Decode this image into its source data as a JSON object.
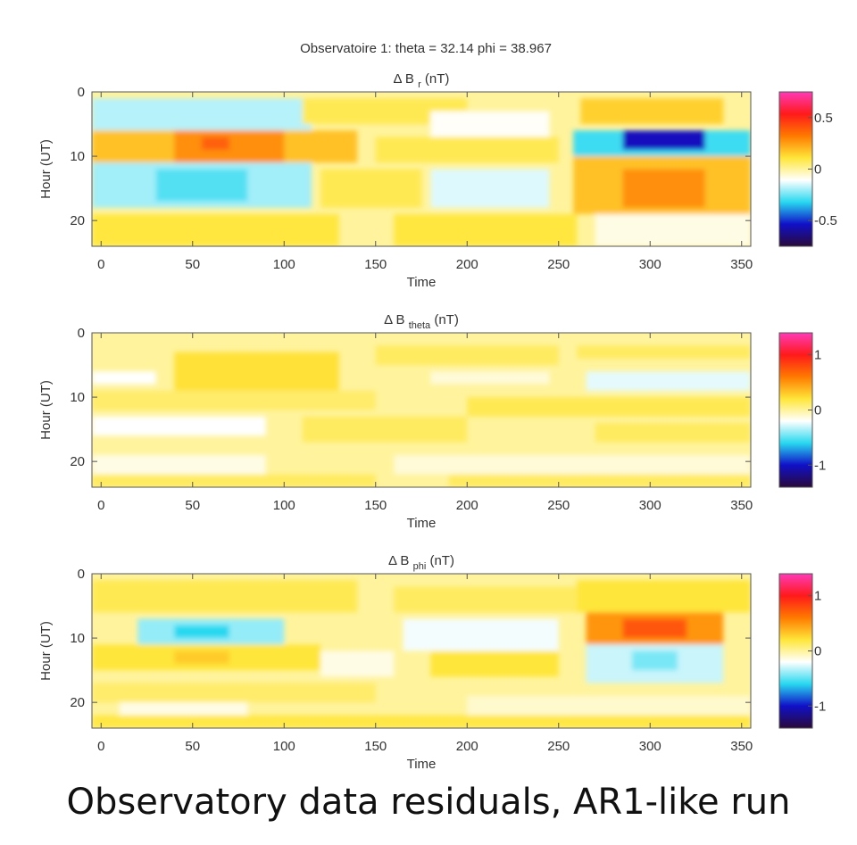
{
  "figure": {
    "suptitle": "Observatoire 1: theta = 32.14 phi = 38.967",
    "caption": "Observatory data residuals, AR1-like run"
  },
  "colormap": {
    "name": "blue-white-red diverging",
    "stops": [
      "#2a0a3a",
      "#1010c8",
      "#28d8f0",
      "#ffffff",
      "#ffe63a",
      "#ff7a00",
      "#ff1a1a",
      "#ff3ab8"
    ]
  },
  "chart_data": [
    {
      "type": "heatmap",
      "title_main": "Δ B",
      "title_sub": "r",
      "title_unit": "(nT)",
      "xlabel": "Time",
      "ylabel": "Hour (UT)",
      "xlim": [
        -5,
        355
      ],
      "ylim": [
        0,
        24
      ],
      "y_reversed": true,
      "xticks": [
        0,
        50,
        100,
        150,
        200,
        250,
        300,
        350
      ],
      "yticks": [
        0,
        10,
        20
      ],
      "clim": [
        -0.75,
        0.75
      ],
      "cticks": [
        0.5,
        0,
        -0.5
      ],
      "cticklabels": [
        "0.5",
        "0",
        "-0.5"
      ],
      "blocks": [
        {
          "x0": -5,
          "x1": 115,
          "y0": 1,
          "y1": 6,
          "v": -0.18
        },
        {
          "x0": 110,
          "x1": 200,
          "y0": 1,
          "y1": 5,
          "v": 0.08
        },
        {
          "x0": 180,
          "x1": 245,
          "y0": 3,
          "y1": 7,
          "v": -0.1
        },
        {
          "x0": 262,
          "x1": 340,
          "y0": 1,
          "y1": 5,
          "v": 0.15
        },
        {
          "x0": -5,
          "x1": 140,
          "y0": 6,
          "y1": 11,
          "v": 0.18
        },
        {
          "x0": 40,
          "x1": 100,
          "y0": 6,
          "y1": 11,
          "v": 0.28
        },
        {
          "x0": 55,
          "x1": 70,
          "y0": 7,
          "y1": 9,
          "v": 0.38
        },
        {
          "x0": 150,
          "x1": 250,
          "y0": 7,
          "y1": 11,
          "v": 0.08
        },
        {
          "x0": 258,
          "x1": 355,
          "y0": 6,
          "y1": 10,
          "v": -0.3
        },
        {
          "x0": 285,
          "x1": 330,
          "y0": 6,
          "y1": 9,
          "v": -0.55
        },
        {
          "x0": -5,
          "x1": 115,
          "y0": 11,
          "y1": 18,
          "v": -0.2
        },
        {
          "x0": 30,
          "x1": 80,
          "y0": 12,
          "y1": 17,
          "v": -0.28
        },
        {
          "x0": 120,
          "x1": 175,
          "y0": 12,
          "y1": 18,
          "v": 0.08
        },
        {
          "x0": 180,
          "x1": 245,
          "y0": 12,
          "y1": 18,
          "v": -0.14
        },
        {
          "x0": 258,
          "x1": 355,
          "y0": 10,
          "y1": 19,
          "v": 0.18
        },
        {
          "x0": 285,
          "x1": 330,
          "y0": 12,
          "y1": 18,
          "v": 0.28
        },
        {
          "x0": -5,
          "x1": 130,
          "y0": 19,
          "y1": 24,
          "v": 0.1
        },
        {
          "x0": 160,
          "x1": 260,
          "y0": 19,
          "y1": 24,
          "v": 0.1
        },
        {
          "x0": 270,
          "x1": 355,
          "y0": 19,
          "y1": 24,
          "v": -0.08
        }
      ]
    },
    {
      "type": "heatmap",
      "title_main": "Δ B",
      "title_sub": "theta",
      "title_unit": "(nT)",
      "xlabel": "Time",
      "ylabel": "Hour (UT)",
      "xlim": [
        -5,
        355
      ],
      "ylim": [
        0,
        24
      ],
      "y_reversed": true,
      "xticks": [
        0,
        50,
        100,
        150,
        200,
        250,
        300,
        350
      ],
      "yticks": [
        0,
        10,
        20
      ],
      "clim": [
        -1.4,
        1.4
      ],
      "cticks": [
        1,
        0,
        -1
      ],
      "cticklabels": [
        "1",
        "0",
        "-1"
      ],
      "blocks": [
        {
          "x0": 40,
          "x1": 130,
          "y0": 3,
          "y1": 9,
          "v": 0.22
        },
        {
          "x0": 150,
          "x1": 250,
          "y0": 2,
          "y1": 5,
          "v": 0.12
        },
        {
          "x0": 260,
          "x1": 355,
          "y0": 2,
          "y1": 4,
          "v": 0.12
        },
        {
          "x0": -5,
          "x1": 30,
          "y0": 6,
          "y1": 8,
          "v": -0.2
        },
        {
          "x0": 180,
          "x1": 245,
          "y0": 6,
          "y1": 8,
          "v": -0.12
        },
        {
          "x0": 265,
          "x1": 355,
          "y0": 6,
          "y1": 9,
          "v": -0.25
        },
        {
          "x0": -5,
          "x1": 150,
          "y0": 9,
          "y1": 12,
          "v": 0.1
        },
        {
          "x0": 200,
          "x1": 355,
          "y0": 10,
          "y1": 13,
          "v": 0.15
        },
        {
          "x0": -5,
          "x1": 90,
          "y0": 13,
          "y1": 16,
          "v": -0.2
        },
        {
          "x0": 110,
          "x1": 200,
          "y0": 13,
          "y1": 17,
          "v": 0.12
        },
        {
          "x0": 270,
          "x1": 355,
          "y0": 14,
          "y1": 17,
          "v": 0.12
        },
        {
          "x0": -5,
          "x1": 90,
          "y0": 19,
          "y1": 22,
          "v": -0.15
        },
        {
          "x0": 160,
          "x1": 355,
          "y0": 19,
          "y1": 22,
          "v": -0.12
        },
        {
          "x0": -5,
          "x1": 150,
          "y0": 22,
          "y1": 24,
          "v": 0.12
        },
        {
          "x0": 190,
          "x1": 355,
          "y0": 22,
          "y1": 24,
          "v": 0.12
        }
      ]
    },
    {
      "type": "heatmap",
      "title_main": "Δ B",
      "title_sub": "phi",
      "title_unit": "(nT)",
      "xlabel": "Time",
      "ylabel": "Hour (UT)",
      "xlim": [
        -5,
        355
      ],
      "ylim": [
        0,
        24
      ],
      "y_reversed": true,
      "xticks": [
        0,
        50,
        100,
        150,
        200,
        250,
        300,
        350
      ],
      "yticks": [
        0,
        10,
        20
      ],
      "clim": [
        -1.4,
        1.4
      ],
      "cticks": [
        1,
        0,
        -1
      ],
      "cticklabels": [
        "1",
        "0",
        "-1"
      ],
      "blocks": [
        {
          "x0": -5,
          "x1": 140,
          "y0": 1,
          "y1": 6,
          "v": 0.15
        },
        {
          "x0": 160,
          "x1": 260,
          "y0": 2,
          "y1": 6,
          "v": 0.12
        },
        {
          "x0": 260,
          "x1": 355,
          "y0": 1,
          "y1": 6,
          "v": 0.2
        },
        {
          "x0": 20,
          "x1": 100,
          "y0": 7,
          "y1": 11,
          "v": -0.4
        },
        {
          "x0": 40,
          "x1": 70,
          "y0": 8,
          "y1": 10,
          "v": -0.6
        },
        {
          "x0": 165,
          "x1": 250,
          "y0": 7,
          "y1": 12,
          "v": -0.22
        },
        {
          "x0": 265,
          "x1": 340,
          "y0": 6,
          "y1": 11,
          "v": 0.5
        },
        {
          "x0": 285,
          "x1": 320,
          "y0": 7,
          "y1": 10,
          "v": 0.75
        },
        {
          "x0": -5,
          "x1": 120,
          "y0": 11,
          "y1": 15,
          "v": 0.2
        },
        {
          "x0": 40,
          "x1": 70,
          "y0": 12,
          "y1": 14,
          "v": 0.3
        },
        {
          "x0": 120,
          "x1": 160,
          "y0": 12,
          "y1": 16,
          "v": -0.15
        },
        {
          "x0": 180,
          "x1": 250,
          "y0": 12,
          "y1": 16,
          "v": 0.2
        },
        {
          "x0": 265,
          "x1": 340,
          "y0": 11,
          "y1": 17,
          "v": -0.3
        },
        {
          "x0": 290,
          "x1": 315,
          "y0": 12,
          "y1": 15,
          "v": -0.45
        },
        {
          "x0": -5,
          "x1": 150,
          "y0": 17,
          "y1": 20,
          "v": 0.1
        },
        {
          "x0": 10,
          "x1": 80,
          "y0": 20,
          "y1": 23,
          "v": -0.15
        },
        {
          "x0": 200,
          "x1": 355,
          "y0": 19,
          "y1": 22,
          "v": -0.1
        },
        {
          "x0": -5,
          "x1": 355,
          "y0": 22,
          "y1": 24,
          "v": 0.18
        }
      ]
    }
  ]
}
